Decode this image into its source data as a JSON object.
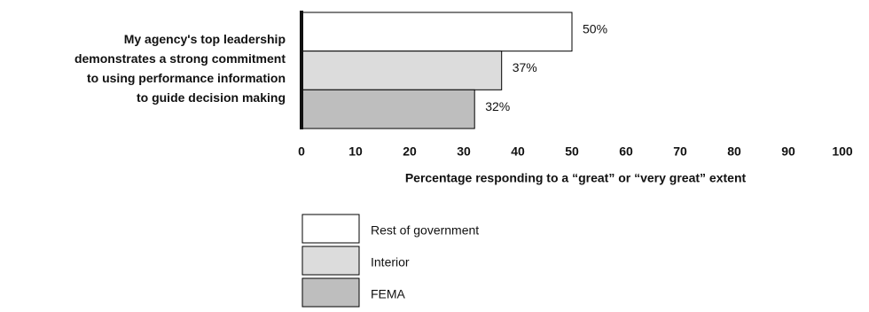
{
  "chart_data": {
    "type": "bar",
    "orientation": "horizontal",
    "categories": [
      [
        "My agency's top leadership",
        "demonstrates a strong commitment",
        "to using performance information",
        "to guide decision making"
      ]
    ],
    "series": [
      {
        "name": "Rest of government",
        "color": "#ffffff",
        "values": [
          50
        ],
        "value_labels": [
          "50%"
        ]
      },
      {
        "name": "Interior",
        "color": "#dcdcdc",
        "values": [
          37
        ],
        "value_labels": [
          "37%"
        ]
      },
      {
        "name": "FEMA",
        "color": "#bebebe",
        "values": [
          32
        ],
        "value_labels": [
          "32%"
        ]
      }
    ],
    "xlabel": "Percentage responding to a “great” or “very great” extent",
    "xlim": [
      0,
      100
    ],
    "xticks": [
      0,
      10,
      20,
      30,
      40,
      50,
      60,
      70,
      80,
      90,
      100
    ],
    "grid": false,
    "legend": "bottom"
  }
}
